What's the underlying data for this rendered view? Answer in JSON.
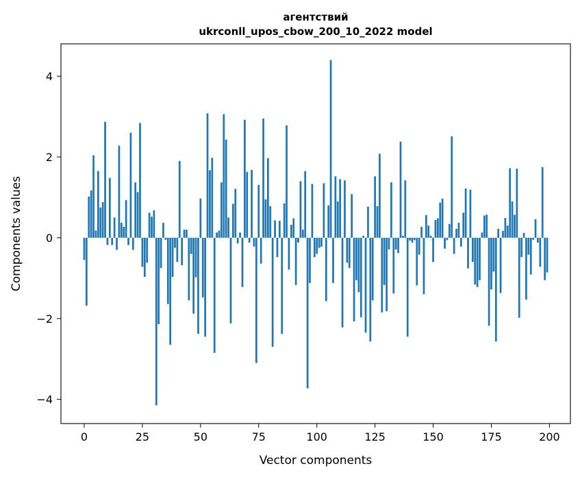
{
  "chart_data": {
    "type": "bar",
    "title_lines": [
      "агентствий",
      "ukrconll_upos_cbow_200_10_2022 model"
    ],
    "xlabel": "Vector components",
    "ylabel": "Components values",
    "xlim": [
      -10,
      209
    ],
    "ylim": [
      -4.6,
      4.8
    ],
    "xticks": [
      0,
      25,
      50,
      75,
      100,
      125,
      150,
      175,
      200
    ],
    "yticks": [
      -4,
      -2,
      0,
      2,
      4
    ],
    "ytick_labels": [
      "−4",
      "−2",
      "0",
      "2",
      "4"
    ],
    "grid": false,
    "bar_color": "#1f77b4",
    "values": [
      -0.55,
      -1.68,
      1.02,
      1.17,
      2.04,
      0.18,
      1.65,
      0.75,
      0.88,
      2.87,
      -0.18,
      1.48,
      -0.18,
      0.5,
      -0.3,
      2.28,
      0.37,
      0.27,
      0.93,
      -0.18,
      2.6,
      -0.3,
      1.37,
      1.13,
      2.84,
      -0.72,
      -0.97,
      -0.62,
      0.62,
      0.52,
      0.68,
      -4.15,
      -2.14,
      -0.75,
      0.37,
      -0.05,
      -1.64,
      -2.65,
      -0.97,
      -0.25,
      -0.6,
      1.9,
      -0.68,
      0.2,
      0.2,
      -1.55,
      -0.4,
      -1.88,
      -0.98,
      -2.38,
      0.97,
      -1.48,
      -2.45,
      3.08,
      1.67,
      1.98,
      -2.85,
      0.13,
      0.18,
      1.37,
      3.06,
      2.43,
      0.5,
      -2.12,
      0.84,
      1.21,
      -0.14,
      0.13,
      -1.22,
      2.92,
      1.63,
      -0.12,
      1.68,
      -0.22,
      -3.1,
      1.31,
      -0.64,
      2.95,
      0.95,
      1.97,
      0.78,
      -2.7,
      0.43,
      -0.48,
      0.42,
      -2.38,
      0.85,
      2.78,
      -0.79,
      0.32,
      0.48,
      -1.17,
      -0.12,
      1.4,
      0.2,
      1.65,
      -3.73,
      -1.12,
      1.33,
      -0.48,
      -0.4,
      -0.25,
      -0.22,
      1.35,
      -1.57,
      0.8,
      4.4,
      -1.12,
      1.52,
      0.9,
      1.45,
      -2.22,
      1.42,
      -0.62,
      -0.75,
      1.08,
      -2.07,
      -1.05,
      -1.35,
      -1.97,
      0.05,
      -2.35,
      0.77,
      -2.57,
      -1.55,
      1.52,
      0.78,
      2.08,
      -1.85,
      -1.17,
      -1.82,
      -0.29,
      1.37,
      -1.38,
      -0.29,
      -0.38,
      2.38,
      0.05,
      1.42,
      -2.45,
      -0.07,
      -0.12,
      -0.06,
      -1.18,
      -0.42,
      0.27,
      -1.4,
      0.56,
      0.3,
      0.05,
      -0.6,
      0.44,
      0.48,
      0.87,
      0.97,
      -0.27,
      -0.06,
      0.34,
      2.51,
      -0.4,
      0.22,
      0.37,
      -0.22,
      0.62,
      1.22,
      -0.76,
      1.19,
      -0.6,
      -1.16,
      -1.22,
      -1.05,
      0.13,
      0.55,
      0.57,
      -2.18,
      -1.28,
      -0.84,
      -2.57,
      0.22,
      -1.37,
      0.17,
      0.49,
      0.3,
      1.72,
      0.9,
      0.57,
      1.71,
      -1.98,
      -0.48,
      0.12,
      -1.53,
      -0.42,
      -0.91,
      -0.05,
      0.46,
      -0.12,
      -0.72,
      1.75,
      -1.05,
      -0.86
    ]
  }
}
